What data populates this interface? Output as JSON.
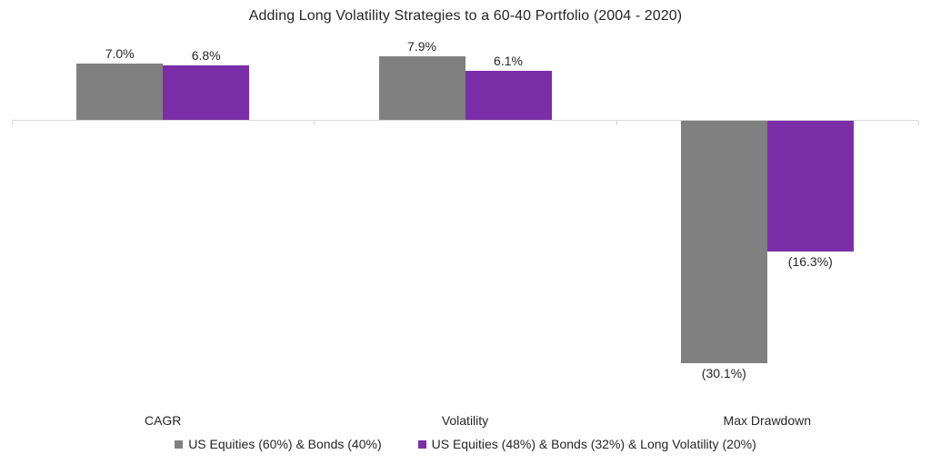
{
  "chart_data": {
    "type": "bar",
    "title": "Adding Long Volatility Strategies to a 60-40 Portfolio (2004 - 2020)",
    "categories": [
      "CAGR",
      "Volatility",
      "Max Drawdown"
    ],
    "series": [
      {
        "name": "US Equities (60%) & Bonds (40%)",
        "color": "#808080",
        "values": [
          7.0,
          7.9,
          -30.1
        ],
        "labels": [
          "7.0%",
          "7.9%",
          "(30.1%)"
        ]
      },
      {
        "name": "US Equities (48%) & Bonds (32%) & Long Volatility (20%)",
        "color": "#7A2FA8",
        "values": [
          6.8,
          6.1,
          -16.3
        ],
        "labels": [
          "6.8%",
          "6.1%",
          "(16.3%)"
        ]
      }
    ],
    "value_format": "percent",
    "negative_format": "parentheses",
    "xlabel": "",
    "ylabel": "",
    "y_axis_visible": false,
    "gridlines": false,
    "axis_color": "#D9D9D9",
    "text_color": "#262626",
    "legend_position": "bottom"
  }
}
